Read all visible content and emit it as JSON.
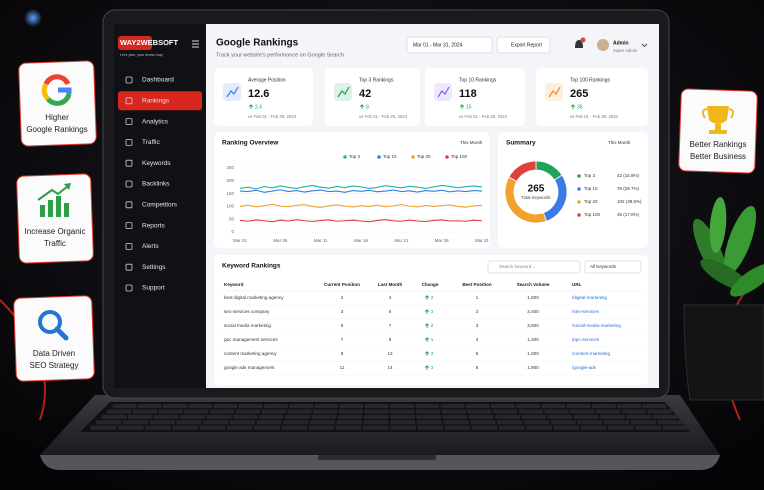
{
  "brand": {
    "name": "WAY2WEBSOFT",
    "tagline": "Let's plan, your dream way"
  },
  "badges": [
    {
      "lines": [
        "Higher",
        "Google Rankings"
      ]
    },
    {
      "lines": [
        "Increase Organic",
        "Traffic"
      ]
    },
    {
      "lines": [
        "Data Driven",
        "SEO Strategy"
      ]
    },
    {
      "lines": [
        "Better Rankings",
        "Better Business"
      ]
    }
  ],
  "sidebar": {
    "items": [
      "Dashboard",
      "Rankings",
      "Analytics",
      "Traffic",
      "Keywords",
      "Backlinks",
      "Competitors",
      "Reports",
      "Alerts",
      "Settings",
      "Support"
    ],
    "active": 1
  },
  "header": {
    "title": "Google Rankings",
    "subtitle": "Track your website's performance on Google Search",
    "date_range": "Mar 01 - Mar 31, 2024",
    "export": "Export Report",
    "user": {
      "name": "Admin",
      "role": "Super Admin"
    }
  },
  "stats": [
    {
      "label": "Average Position",
      "value": 12.6,
      "change": 2.4,
      "compare": "vs Feb 01 - Feb 29, 2024",
      "color": "#3b7be8"
    },
    {
      "label": "Top 3 Rankings",
      "value": 42,
      "change": 8,
      "compare": "vs Feb 01 - Feb 29, 2024",
      "color": "#22a35a"
    },
    {
      "label": "Top 10 Rankings",
      "value": 118,
      "change": 15,
      "compare": "vs Feb 01 - Feb 29, 2024",
      "color": "#8b5cf6"
    },
    {
      "label": "Top 100 Rankings",
      "value": 265,
      "change": 36,
      "compare": "vs Feb 01 - Feb 29, 2024",
      "color": "#f08a24"
    }
  ],
  "chart_data": [
    {
      "type": "line",
      "title": "Ranking Overview",
      "filter": "This Month",
      "categories": [
        "Mar 01",
        null,
        null,
        null,
        null,
        "Mar 06",
        null,
        null,
        null,
        null,
        "Mar 11",
        null,
        null,
        null,
        null,
        "Mar 16",
        null,
        null,
        null,
        null,
        "Mar 21",
        null,
        null,
        null,
        null,
        "Mar 26",
        null,
        null,
        null,
        null,
        "Mar 31"
      ],
      "ylim": [
        0,
        250
      ],
      "yticks": [
        0,
        50,
        100,
        150,
        200,
        250
      ],
      "grid": true,
      "series": [
        {
          "name": "Top 3",
          "color": "#1fb5a6",
          "values": [
            170,
            175,
            168,
            178,
            172,
            180,
            174,
            170,
            177,
            182,
            175,
            171,
            178,
            173,
            180,
            176,
            170,
            174,
            181,
            177,
            172,
            179,
            175,
            170,
            176,
            182,
            178,
            173,
            177,
            180,
            176
          ]
        },
        {
          "name": "Top 10",
          "color": "#3b7be8",
          "values": [
            160,
            158,
            163,
            155,
            160,
            165,
            158,
            162,
            156,
            161,
            164,
            158,
            160,
            155,
            162,
            159,
            163,
            157,
            160,
            164,
            158,
            161,
            156,
            162,
            159,
            163,
            157,
            161,
            158,
            162,
            160
          ]
        },
        {
          "name": "Top 20",
          "color": "#f2a22c",
          "values": [
            100,
            105,
            98,
            103,
            108,
            101,
            99,
            104,
            107,
            100,
            96,
            102,
            106,
            101,
            98,
            103,
            100,
            105,
            99,
            102,
            107,
            101,
            98,
            104,
            100,
            103,
            106,
            100,
            97,
            102,
            105
          ]
        },
        {
          "name": "Top 100",
          "color": "#e0413b",
          "values": [
            45,
            42,
            47,
            44,
            40,
            46,
            43,
            48,
            44,
            41,
            45,
            47,
            42,
            44,
            46,
            43,
            40,
            45,
            48,
            44,
            42,
            46,
            43,
            41,
            45,
            47,
            43,
            44,
            42,
            46,
            44
          ]
        }
      ]
    },
    {
      "type": "donut",
      "title": "Summary",
      "filter": "This Month",
      "center_value": 265,
      "center_label": "Total Keywords",
      "categories": [
        "Top 3",
        "Top 10",
        "Top 20",
        "Top 100"
      ],
      "values": [
        42,
        76,
        102,
        45
      ],
      "value_labels": [
        "42 (15.8%)",
        "76 (28.7%)",
        "102 (38.5%)",
        "45 (17.0%)"
      ],
      "colors": [
        "#22a35a",
        "#3b7be8",
        "#f2a22c",
        "#e0413b"
      ]
    }
  ],
  "table": {
    "title": "Keyword Rankings",
    "search": "Search keyword...",
    "filter": "All Keywords",
    "columns": [
      "Keyword",
      "Current Position",
      "Last Month",
      "Change",
      "Best Position",
      "Search Volume",
      "URL"
    ],
    "rows": [
      [
        "best digital marketing agency",
        2,
        4,
        2,
        1,
        "1,600",
        "/digital-marketing"
      ],
      [
        "seo services company",
        3,
        6,
        3,
        2,
        "2,400",
        "/seo-services"
      ],
      [
        "social media marketing",
        5,
        7,
        2,
        3,
        "3,600",
        "/social-media-marketing"
      ],
      [
        "ppc management services",
        7,
        8,
        1,
        4,
        "1,200",
        "/ppc-services"
      ],
      [
        "content marketing agency",
        9,
        12,
        3,
        6,
        "1,000",
        "/content-marketing"
      ],
      [
        "google ads management",
        11,
        14,
        3,
        8,
        "1,900",
        "/google-ads"
      ]
    ]
  }
}
